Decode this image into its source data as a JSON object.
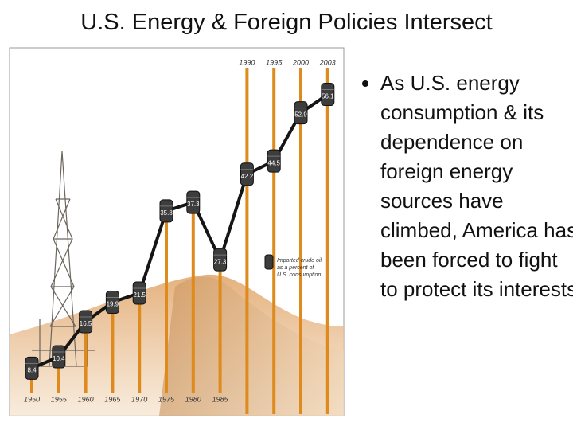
{
  "title": "U.S. Energy & Foreign Policies Intersect",
  "bullets": [
    "As U.S. energy consumption & its dependence on foreign energy sources have climbed, America has been forced to fight to protect its interests"
  ],
  "chart_data": {
    "type": "line",
    "categories": [
      "1950",
      "1955",
      "1960",
      "1965",
      "1970",
      "1975",
      "1980",
      "1985",
      "1990",
      "1995",
      "2000",
      "2003"
    ],
    "series": [
      {
        "name": "Imported crude oil as a percent of U.S. consumption",
        "color": "#151515",
        "values": [
          8.4,
          10.4,
          16.5,
          19.9,
          21.5,
          35.8,
          37.3,
          27.3,
          42.2,
          44.5,
          52.9,
          56.1
        ]
      }
    ]
  }
}
